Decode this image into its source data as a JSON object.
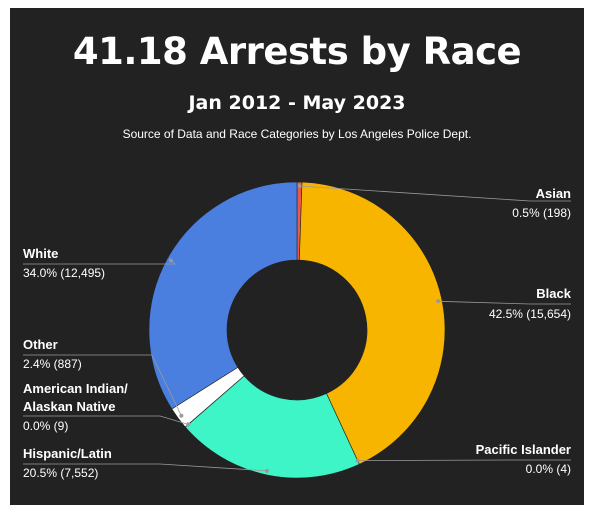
{
  "header": {
    "title": "41.18 Arrests by Race",
    "subtitle": "Jan 2012 - May 2023",
    "source": "Source of Data and Race Categories by Los Angeles Police Dept."
  },
  "colors": {
    "background": "#222222",
    "leader_line": "#9a9a9a"
  },
  "chart_data": {
    "type": "pie",
    "donut": true,
    "title": "41.18 Arrests by Race",
    "subtitle": "Jan 2012 - May 2023",
    "slices": [
      {
        "label": "Asian",
        "value": 198,
        "display": "0.5% (198)",
        "color": "#e85a4f"
      },
      {
        "label": "Black",
        "value": 15654,
        "display": "42.5% (15,654)",
        "color": "#f7b500"
      },
      {
        "label": "Pacific Islander",
        "value": 4,
        "display": "0.0% (4)",
        "color": "#f7b500"
      },
      {
        "label": "Hispanic/Latin",
        "value": 7552,
        "display": "20.5% (7,552)",
        "color": "#3ef5c8"
      },
      {
        "label": "American Indian/ Alaskan Native",
        "value": 9,
        "display": "0.0% (9)",
        "color": "#3ef5c8"
      },
      {
        "label": "Other",
        "value": 887,
        "display": "2.4% (887)",
        "color": "#ffffff"
      },
      {
        "label": "White",
        "value": 12495,
        "display": "34.0% (12,495)",
        "color": "#4a7fe0"
      }
    ]
  }
}
